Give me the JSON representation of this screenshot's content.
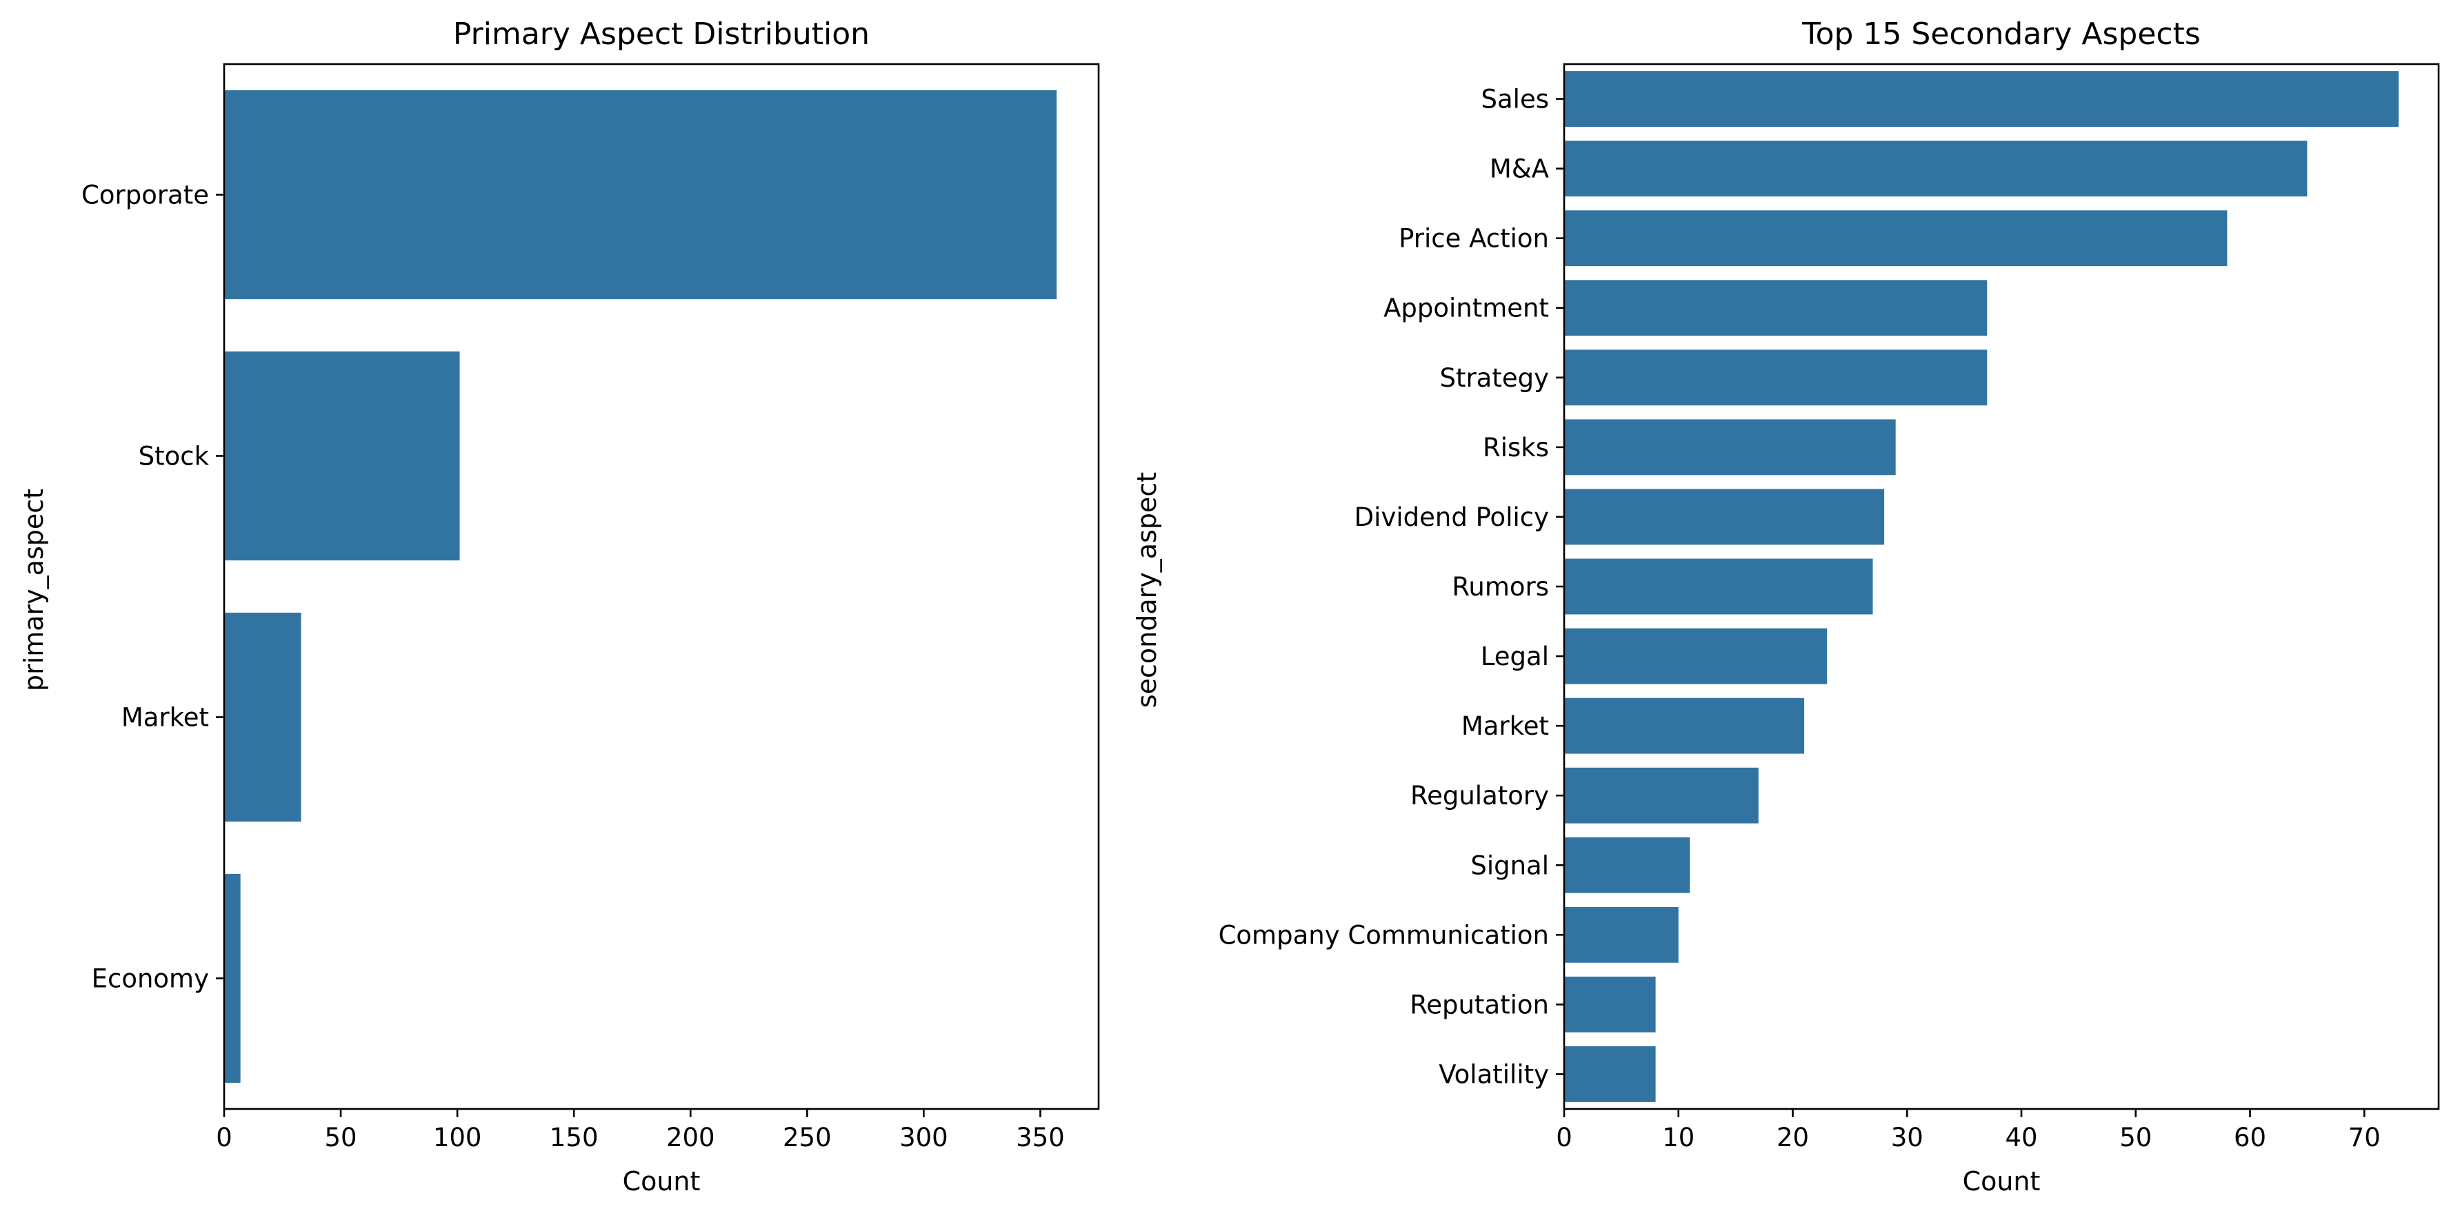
{
  "figure": {
    "background": "#ffffff",
    "bar_color": "#3274a1"
  },
  "chart_data": [
    {
      "type": "bar",
      "orientation": "horizontal",
      "title": "Primary Aspect Distribution",
      "xlabel": "Count",
      "ylabel": "primary_aspect",
      "categories": [
        "Corporate",
        "Stock",
        "Market",
        "Economy"
      ],
      "values": [
        357,
        101,
        33,
        7
      ],
      "xlim": [
        0,
        375
      ],
      "xticks": [
        0,
        50,
        100,
        150,
        200,
        250,
        300,
        350
      ],
      "grid": false,
      "legend": "none"
    },
    {
      "type": "bar",
      "orientation": "horizontal",
      "title": "Top 15 Secondary Aspects",
      "xlabel": "Count",
      "ylabel": "secondary_aspect",
      "categories": [
        "Sales",
        "M&A",
        "Price Action",
        "Appointment",
        "Strategy",
        "Risks",
        "Dividend Policy",
        "Rumors",
        "Legal",
        "Market",
        "Regulatory",
        "Signal",
        "Company Communication",
        "Reputation",
        "Volatility"
      ],
      "values": [
        73,
        65,
        58,
        37,
        37,
        29,
        28,
        27,
        23,
        21,
        17,
        11,
        10,
        8,
        8
      ],
      "xlim": [
        0,
        76.5
      ],
      "xticks": [
        0,
        10,
        20,
        30,
        40,
        50,
        60,
        70
      ],
      "grid": false,
      "legend": "none"
    }
  ]
}
